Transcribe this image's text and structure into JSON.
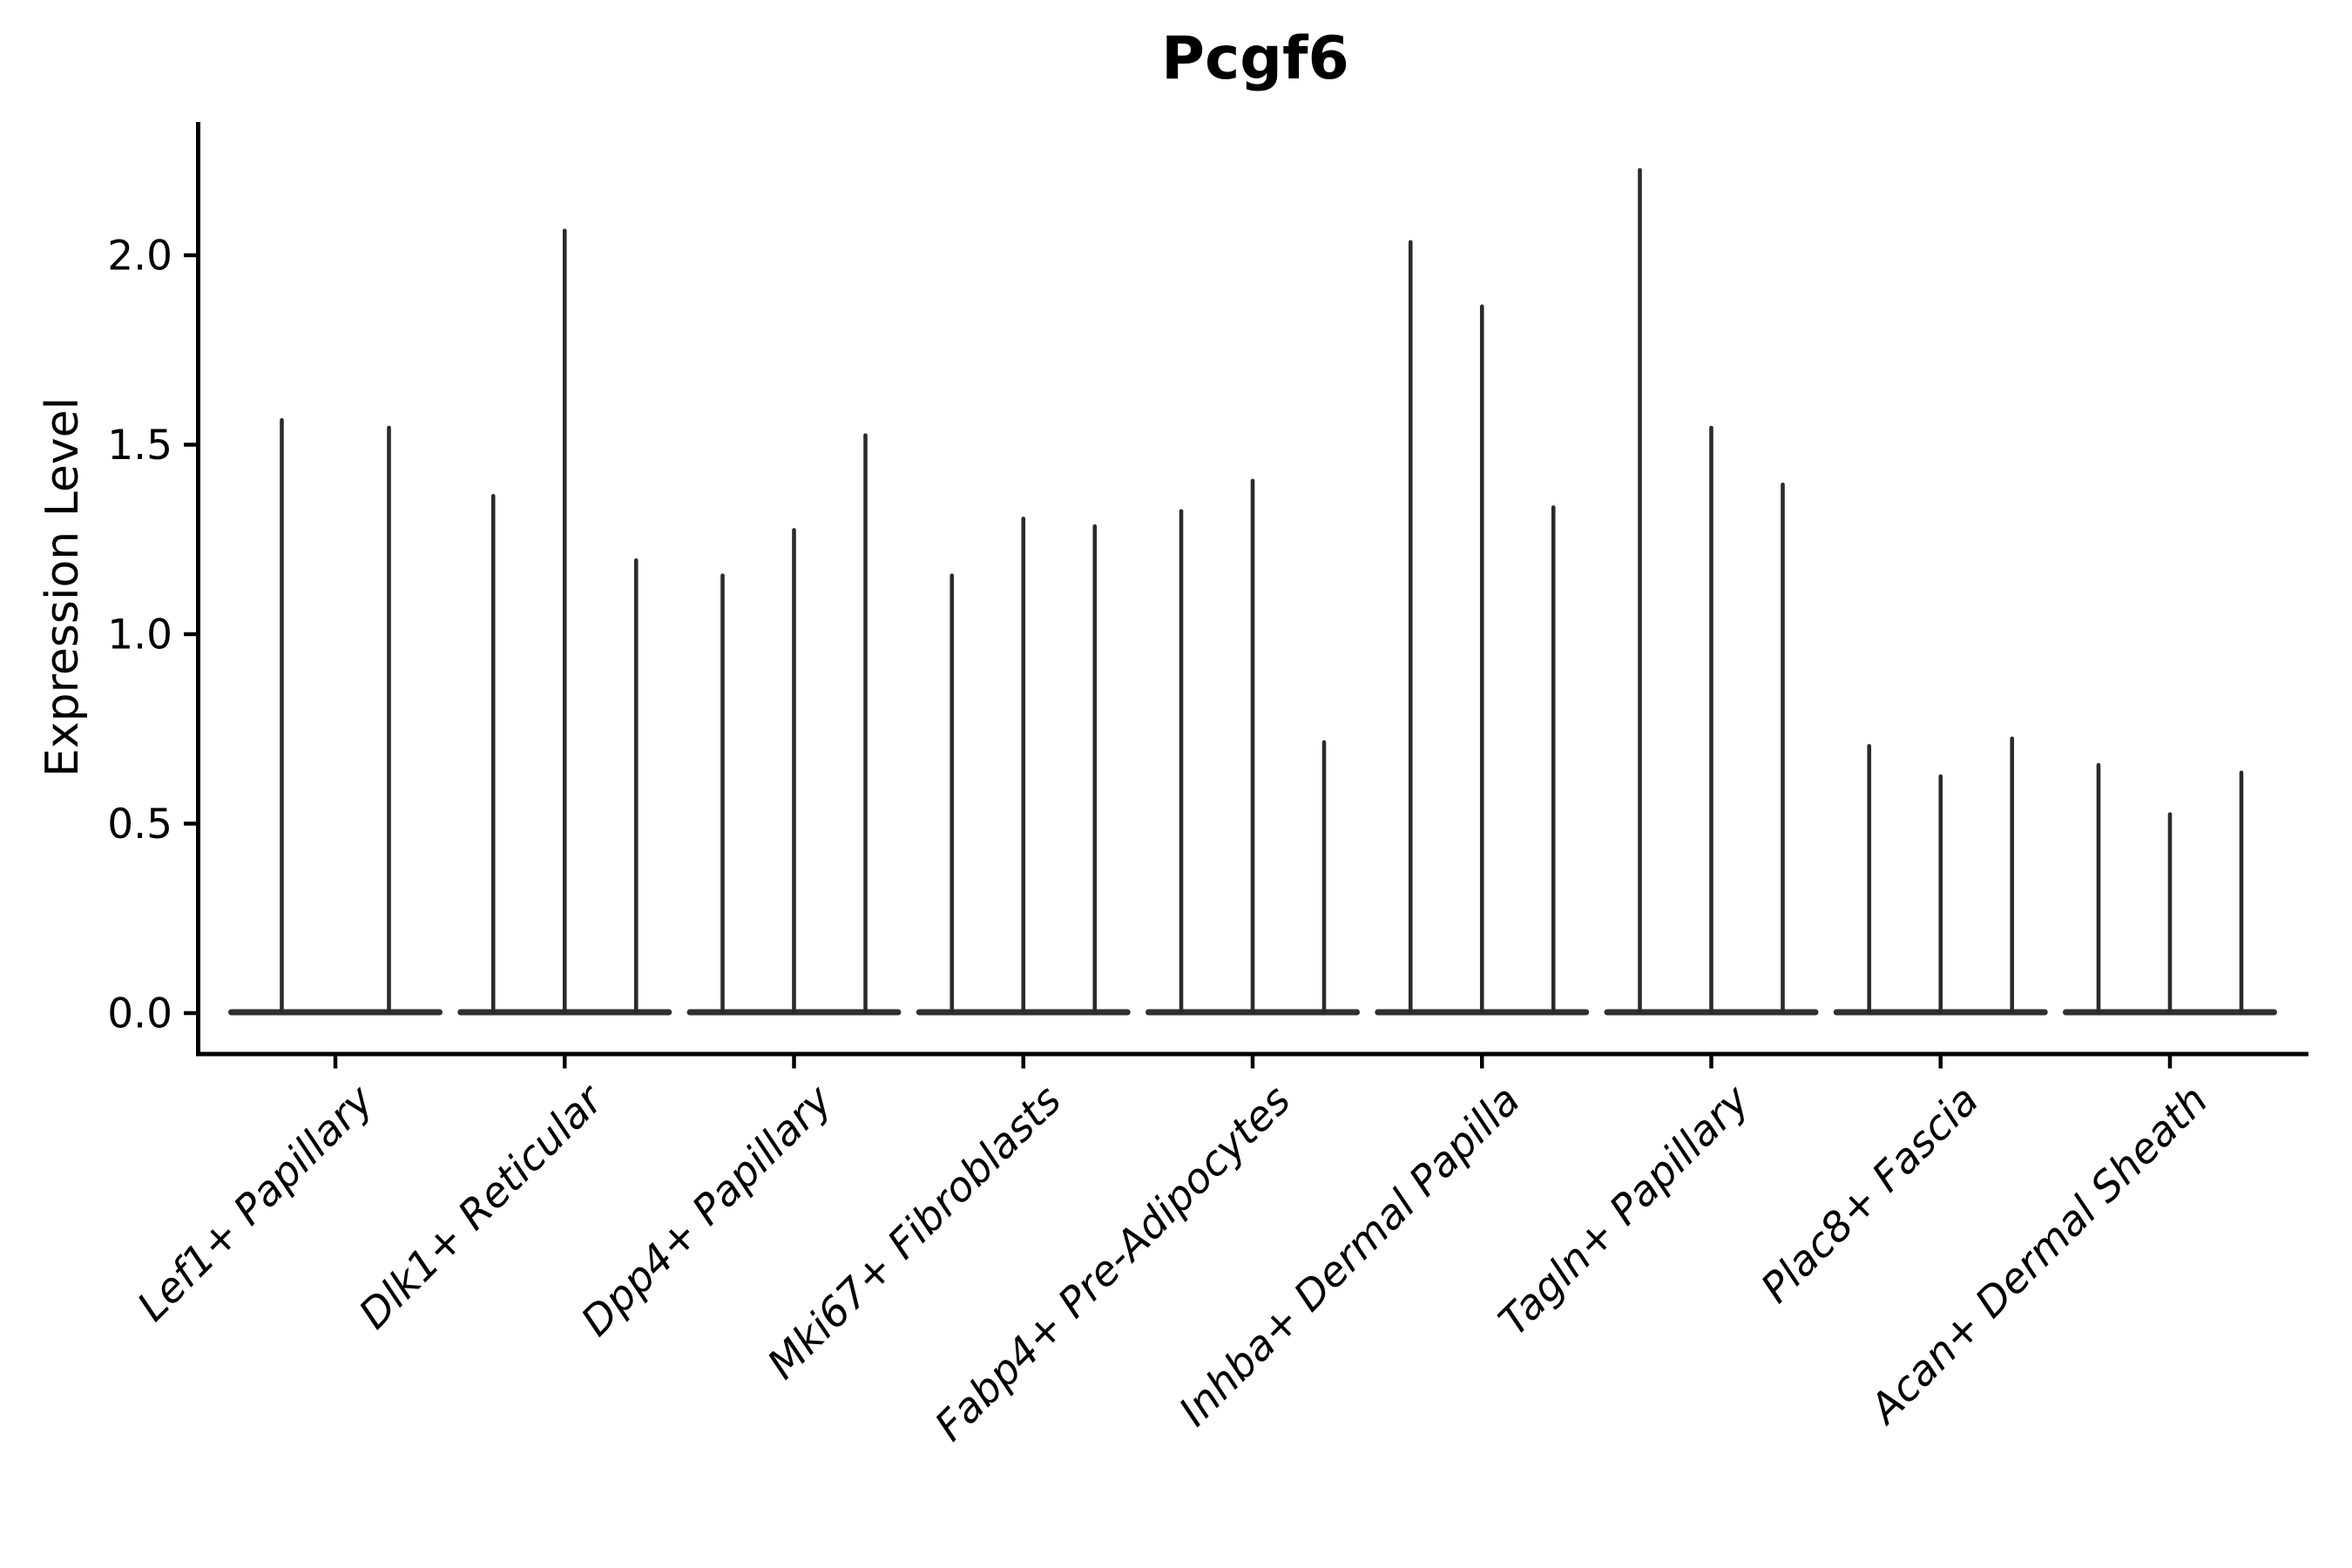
{
  "chart_data": {
    "type": "violin",
    "title": "Pcgf6",
    "ylabel": "Expression Level",
    "xlabel": "",
    "ytick_values": [
      0.0,
      0.5,
      1.0,
      1.5,
      2.0
    ],
    "ytick_labels": [
      "0.0",
      "0.5",
      "1.0",
      "1.5",
      "2.0"
    ],
    "ylim": [
      -0.1,
      2.35
    ],
    "grid": false,
    "legend": false,
    "groups": [
      {
        "category": "Lef1+ Papillary",
        "violin_max_values": [
          1.57,
          1.55
        ]
      },
      {
        "category": "Dlk1+ Reticular",
        "violin_max_values": [
          1.37,
          2.07,
          1.2
        ]
      },
      {
        "category": "Dpp4+ Papillary",
        "violin_max_values": [
          1.16,
          1.28,
          1.53
        ]
      },
      {
        "category": "Mki67+ Fibroblasts",
        "violin_max_values": [
          1.16,
          1.31,
          1.29
        ]
      },
      {
        "category": "Fabp4+ Pre-Adipocytes",
        "violin_max_values": [
          1.33,
          1.41,
          0.72
        ]
      },
      {
        "category": "Inhba+ Dermal Papilla",
        "violin_max_values": [
          2.04,
          1.87,
          1.34
        ]
      },
      {
        "category": "Tagln+ Papillary",
        "violin_max_values": [
          2.23,
          1.55,
          1.4
        ]
      },
      {
        "category": "Plac8+ Fascia",
        "violin_max_values": [
          0.71,
          0.63,
          0.73
        ]
      },
      {
        "category": "Acan+ Dermal Sheath",
        "violin_max_values": [
          0.66,
          0.53,
          0.64
        ]
      }
    ],
    "colors": {
      "violin": "#2b2b2b",
      "violin_base": "#303030",
      "axis": "#000000",
      "text": "#000000",
      "background": "#ffffff"
    }
  }
}
